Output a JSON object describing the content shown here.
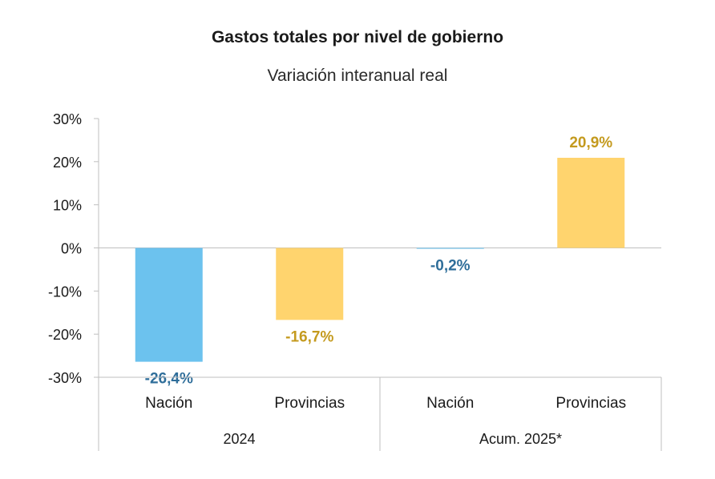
{
  "chart_data": {
    "type": "bar",
    "title": "Gastos totales por nivel de gobierno",
    "subtitle": "Variación interanual real",
    "xlabel": "",
    "ylabel": "",
    "ylim": [
      -30,
      30
    ],
    "y_ticks": [
      30,
      20,
      10,
      0,
      -10,
      -20,
      -30
    ],
    "y_tick_labels": [
      "30%",
      "20%",
      "10%",
      "0%",
      "-10%",
      "-20%",
      "-30%"
    ],
    "grid": false,
    "groups": [
      {
        "label": "2024",
        "categories": [
          "Nación",
          "Provincias"
        ]
      },
      {
        "label": "Acum. 2025*",
        "categories": [
          "Nación",
          "Provincias"
        ]
      }
    ],
    "bars": [
      {
        "group": "2024",
        "category": "Nación",
        "value": -26.4,
        "label": "-26,4%",
        "color": "#6CC2EE",
        "label_color": "#2F6E9A"
      },
      {
        "group": "2024",
        "category": "Provincias",
        "value": -16.7,
        "label": "-16,7%",
        "color": "#FFD46E",
        "label_color": "#C49A1E"
      },
      {
        "group": "Acum. 2025*",
        "category": "Nación",
        "value": -0.2,
        "label": "-0,2%",
        "color": "#6CC2EE",
        "label_color": "#2F6E9A"
      },
      {
        "group": "Acum. 2025*",
        "category": "Provincias",
        "value": 20.9,
        "label": "20,9%",
        "color": "#FFD46E",
        "label_color": "#C49A1E"
      }
    ],
    "colors": {
      "nacion": "#6CC2EE",
      "provincias": "#FFD46E",
      "nacion_label": "#2F6E9A",
      "provincias_label": "#C49A1E",
      "axis": "#BFBFBF",
      "text": "#1A1A1A"
    }
  }
}
